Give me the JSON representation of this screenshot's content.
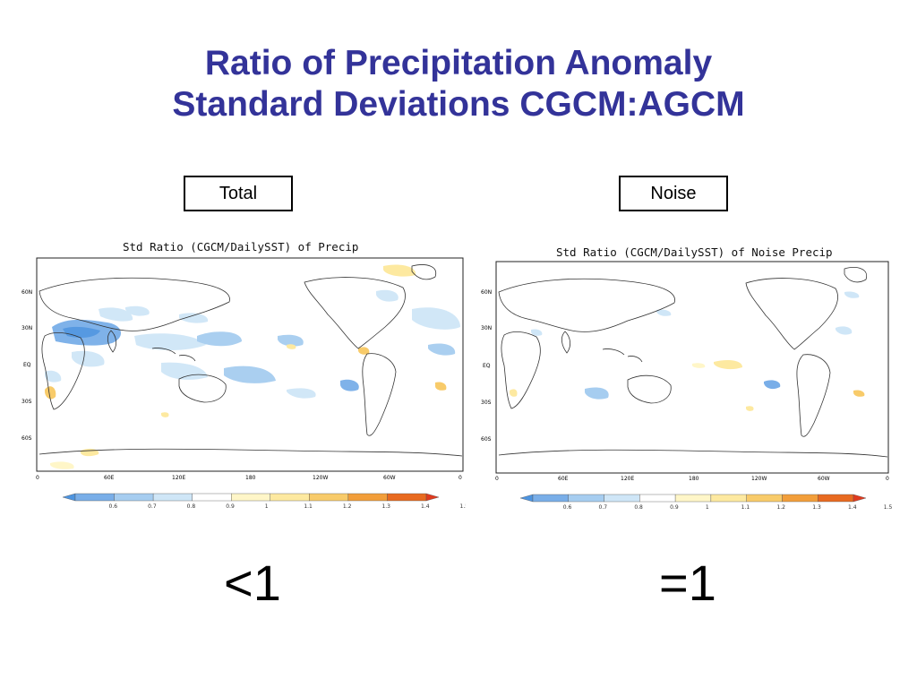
{
  "title": {
    "line1": "Ratio of Precipitation Anomaly",
    "line2": "Standard Deviations CGCM:AGCM"
  },
  "labels": {
    "left_box": "Total",
    "right_box": "Noise",
    "left_big": "<1",
    "right_big": "=1"
  },
  "maps": [
    {
      "title": "Std Ratio (CGCM/DailySST) of Precip",
      "lat_labels": [
        "60N",
        "30N",
        "EQ",
        "30S",
        "60S"
      ],
      "lon_labels": [
        "0",
        "60E",
        "120E",
        "180",
        "120W",
        "60W",
        "0"
      ]
    },
    {
      "title": "Std Ratio (CGCM/DailySST) of Noise Precip",
      "lat_labels": [
        "60N",
        "30N",
        "EQ",
        "30S",
        "60S"
      ],
      "lon_labels": [
        "0",
        "60E",
        "120E",
        "180",
        "120W",
        "60W",
        "0"
      ]
    }
  ],
  "colorbar": {
    "ticks": [
      "0.6",
      "0.7",
      "0.8",
      "0.9",
      "1",
      "1.1",
      "1.2",
      "1.3",
      "1.4",
      "1.5"
    ],
    "colors": [
      "#4d94e0",
      "#79aee8",
      "#a6cdf0",
      "#cfe6f7",
      "#ffffff",
      "#fff6c8",
      "#fde9a0",
      "#f8cb6a",
      "#f29e3a",
      "#e86a20",
      "#e03a1e"
    ]
  }
}
